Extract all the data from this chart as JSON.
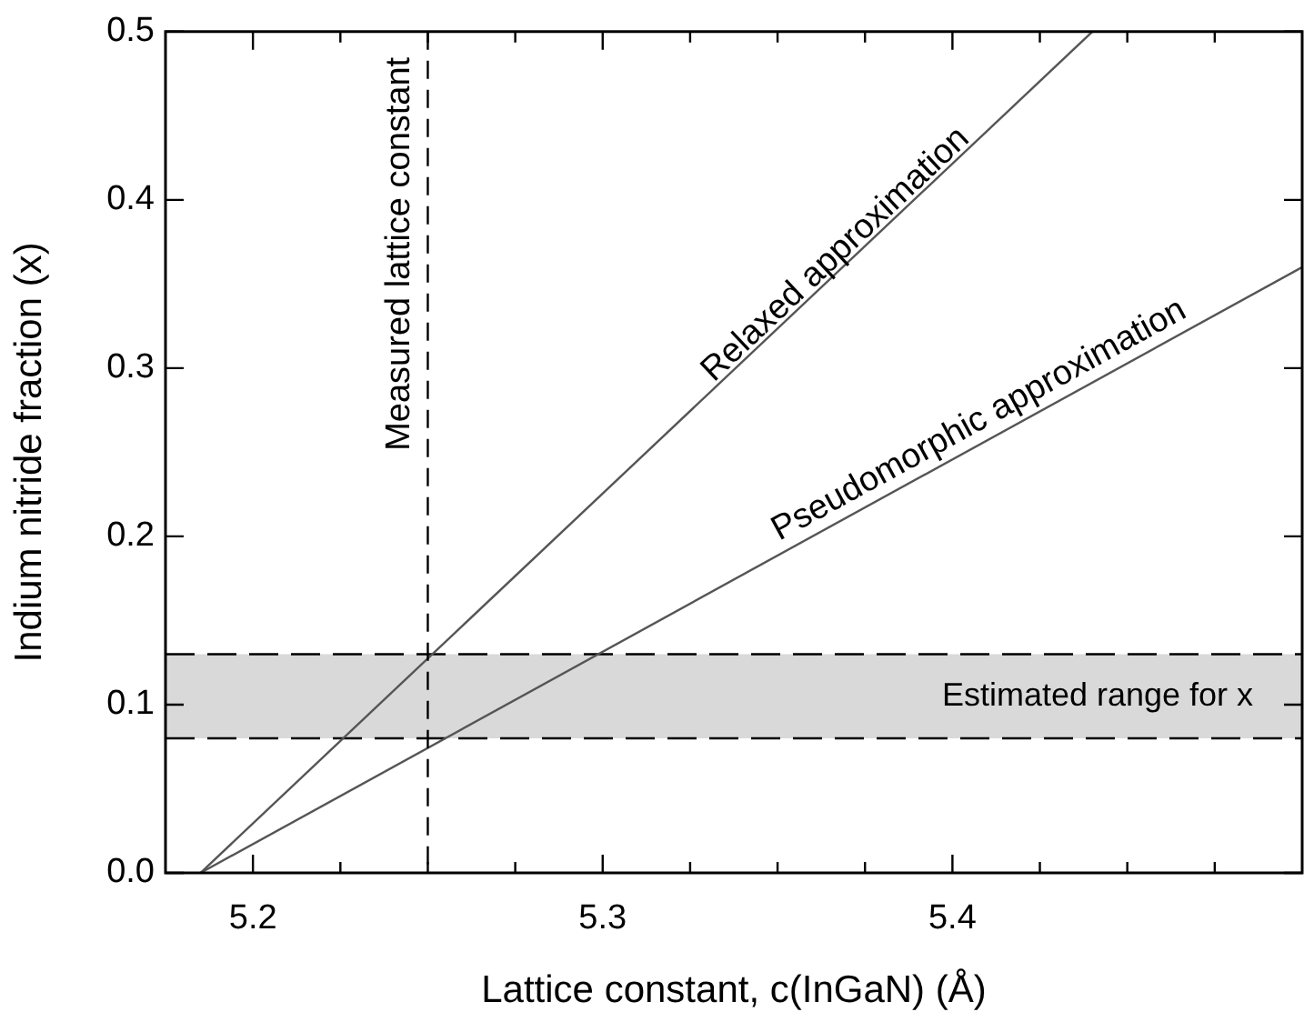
{
  "chart_data": {
    "type": "line",
    "xlabel": "Lattice constant, c(InGaN) (Å)",
    "ylabel": "Indium nitride fraction (x)",
    "series": [
      {
        "x": [
          5.185,
          5.44
        ],
        "values": [
          0,
          0.5
        ],
        "color": "#555555"
      },
      {
        "x": [
          5.185,
          5.5
        ],
        "values": [
          0,
          0.36
        ],
        "color": "#555555"
      }
    ],
    "xlim": [
      5.175,
      5.5
    ],
    "ylim": [
      0,
      0.5
    ],
    "xticks": [
      5.2,
      {
        "value": 5.225,
        "label": null
      },
      {
        "value": 5.25,
        "label": null
      },
      {
        "value": 5.275,
        "label": null
      },
      5.3,
      {
        "value": 5.325,
        "label": null
      },
      {
        "value": 5.35,
        "label": null
      },
      {
        "value": 5.375,
        "label": null
      },
      5.4,
      {
        "value": 5.425,
        "label": null
      },
      {
        "value": 5.45,
        "label": null
      },
      {
        "value": 5.475,
        "label": null
      }
    ],
    "yticks": [
      {
        "value": 0,
        "label": "0.0"
      },
      {
        "value": 0.1,
        "label": "0.1"
      },
      {
        "value": 0.2,
        "label": "0.2"
      },
      {
        "value": 0.3,
        "label": "0.3"
      },
      {
        "value": 0.4,
        "label": "0.4"
      },
      {
        "value": 0.5,
        "label": "0.5"
      }
    ],
    "ref_lines": [
      {
        "axis": "x",
        "value": 5.25,
        "label": "Measured lattice constant",
        "color": "#000000",
        "line_style": "dashed"
      }
    ],
    "bands": [
      {
        "axis": "y",
        "from": 0.08,
        "to": 0.13,
        "label": "Estimated range for x",
        "color": "#d9d9d9"
      }
    ],
    "annotations": [
      {
        "text": "Relaxed approximation",
        "x": 5.37,
        "y": 0.36
      },
      {
        "text": "Pseudomorphic approximation",
        "x": 5.41,
        "y": 0.26
      }
    ],
    "grid": false,
    "legend": false,
    "marker": "none",
    "line_style": "solid"
  }
}
